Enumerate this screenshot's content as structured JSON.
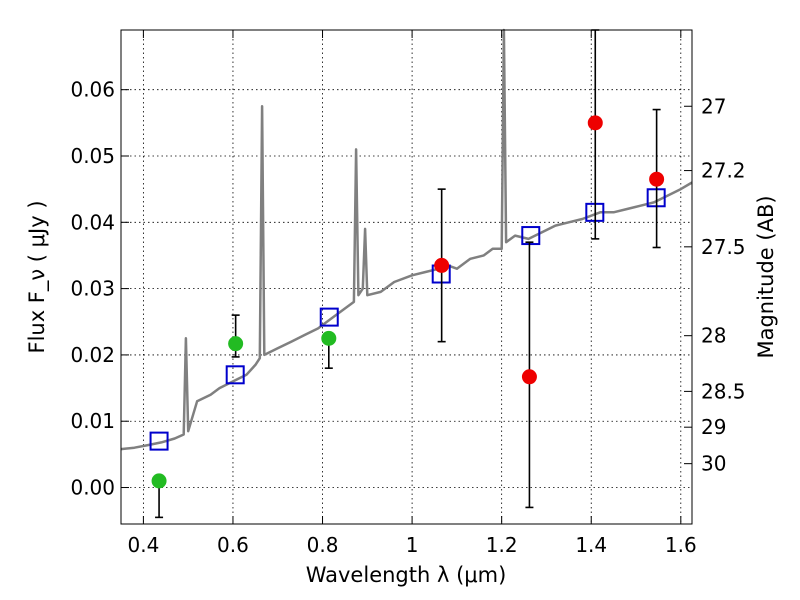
{
  "chart_data": {
    "type": "scatter",
    "xlabel": "Wavelength  λ (μm)",
    "ylabel": "Flux  F_ν  ( μJy )",
    "y2label": "Magnitude (AB)",
    "xlim": [
      0.35,
      1.625
    ],
    "ylim": [
      -0.0055,
      0.069
    ],
    "grid": true,
    "x_ticks": [
      {
        "value": 0.4,
        "label": "0.4"
      },
      {
        "value": 0.6,
        "label": "0.6"
      },
      {
        "value": 0.8,
        "label": "0.8"
      },
      {
        "value": 1.0,
        "label": "1"
      },
      {
        "value": 1.2,
        "label": "1.2"
      },
      {
        "value": 1.4,
        "label": "1.4"
      },
      {
        "value": 1.6,
        "label": "1.6"
      }
    ],
    "y_ticks": [
      {
        "value": 0.0,
        "label": "0.00"
      },
      {
        "value": 0.01,
        "label": "0.01"
      },
      {
        "value": 0.02,
        "label": "0.02"
      },
      {
        "value": 0.03,
        "label": "0.03"
      },
      {
        "value": 0.04,
        "label": "0.04"
      },
      {
        "value": 0.05,
        "label": "0.05"
      },
      {
        "value": 0.06,
        "label": "0.06"
      }
    ],
    "y2_ticks": [
      {
        "flux": 0.0575,
        "label": "27"
      },
      {
        "flux": 0.0478,
        "label": "27.2"
      },
      {
        "flux": 0.0363,
        "label": "27.5"
      },
      {
        "flux": 0.0229,
        "label": "28"
      },
      {
        "flux": 0.0145,
        "label": "28.5"
      },
      {
        "flux": 0.0091,
        "label": "29"
      },
      {
        "flux": 0.0036,
        "label": "30"
      }
    ],
    "series": [
      {
        "kind": "line",
        "color": "#808080",
        "points": [
          [
            0.35,
            0.0058
          ],
          [
            0.38,
            0.006
          ],
          [
            0.41,
            0.0064
          ],
          [
            0.44,
            0.0068
          ],
          [
            0.47,
            0.0074
          ],
          [
            0.49,
            0.008
          ],
          [
            0.495,
            0.0225
          ],
          [
            0.5,
            0.0085
          ],
          [
            0.52,
            0.013
          ],
          [
            0.55,
            0.014
          ],
          [
            0.57,
            0.015
          ],
          [
            0.6,
            0.016
          ],
          [
            0.63,
            0.017
          ],
          [
            0.65,
            0.0185
          ],
          [
            0.66,
            0.0195
          ],
          [
            0.665,
            0.0575
          ],
          [
            0.67,
            0.02
          ],
          [
            0.7,
            0.021
          ],
          [
            0.73,
            0.022
          ],
          [
            0.76,
            0.023
          ],
          [
            0.79,
            0.024
          ],
          [
            0.82,
            0.0255
          ],
          [
            0.85,
            0.027
          ],
          [
            0.87,
            0.028
          ],
          [
            0.875,
            0.051
          ],
          [
            0.88,
            0.029
          ],
          [
            0.89,
            0.03
          ],
          [
            0.895,
            0.039
          ],
          [
            0.9,
            0.029
          ],
          [
            0.93,
            0.0295
          ],
          [
            0.96,
            0.031
          ],
          [
            1.0,
            0.032
          ],
          [
            1.03,
            0.0325
          ],
          [
            1.06,
            0.033
          ],
          [
            1.08,
            0.0335
          ],
          [
            1.1,
            0.033
          ],
          [
            1.13,
            0.0345
          ],
          [
            1.16,
            0.035
          ],
          [
            1.18,
            0.036
          ],
          [
            1.2,
            0.036
          ],
          [
            1.205,
            0.069
          ],
          [
            1.21,
            0.037
          ],
          [
            1.23,
            0.038
          ],
          [
            1.26,
            0.0375
          ],
          [
            1.29,
            0.0385
          ],
          [
            1.32,
            0.0395
          ],
          [
            1.35,
            0.04
          ],
          [
            1.38,
            0.0405
          ],
          [
            1.4,
            0.041
          ],
          [
            1.42,
            0.0415
          ],
          [
            1.45,
            0.0415
          ],
          [
            1.48,
            0.042
          ],
          [
            1.51,
            0.0425
          ],
          [
            1.54,
            0.043
          ],
          [
            1.57,
            0.044
          ],
          [
            1.6,
            0.045
          ],
          [
            1.625,
            0.046
          ]
        ]
      },
      {
        "kind": "squares",
        "color": "#0000cc",
        "points": [
          [
            0.435,
            0.007
          ],
          [
            0.605,
            0.017
          ],
          [
            0.815,
            0.0257
          ],
          [
            1.065,
            0.0322
          ],
          [
            1.265,
            0.038
          ],
          [
            1.408,
            0.0415
          ],
          [
            1.545,
            0.0437
          ]
        ]
      },
      {
        "kind": "points_errorbars",
        "color": "#22bb22",
        "points": [
          {
            "x": 0.435,
            "y": 0.001,
            "yerr_low": 0.0055,
            "yerr_high": 0.0
          },
          {
            "x": 0.606,
            "y": 0.0217,
            "yerr_low": 0.002,
            "yerr_high": 0.0043
          },
          {
            "x": 0.814,
            "y": 0.0225,
            "yerr_low": 0.0045,
            "yerr_high": 0.0
          }
        ]
      },
      {
        "kind": "points_errorbars",
        "color": "#ee0000",
        "points": [
          {
            "x": 1.066,
            "y": 0.0335,
            "yerr_low": 0.0115,
            "yerr_high": 0.0115
          },
          {
            "x": 1.262,
            "y": 0.0167,
            "yerr_low": 0.0197,
            "yerr_high": 0.0203
          },
          {
            "x": 1.409,
            "y": 0.055,
            "yerr_low": 0.0175,
            "yerr_high": 0.014
          },
          {
            "x": 1.546,
            "y": 0.0465,
            "yerr_low": 0.0103,
            "yerr_high": 0.0105
          }
        ]
      }
    ]
  }
}
